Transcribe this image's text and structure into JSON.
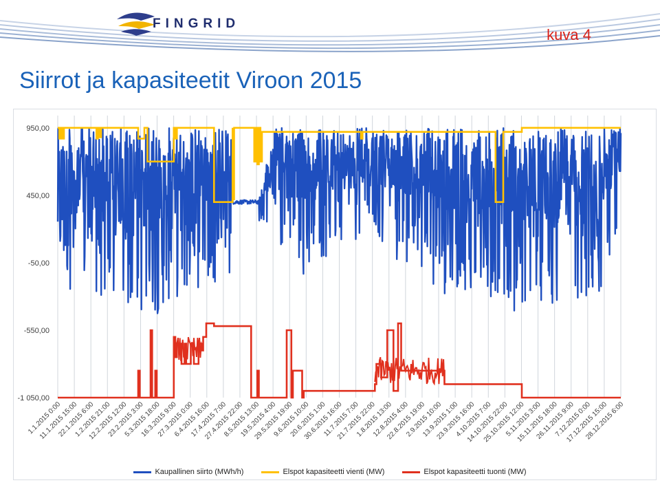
{
  "header": {
    "logo_text": "FINGRID",
    "slide_tag": "kuva 4",
    "title": "Siirrot ja kapasiteetit Viroon 2015"
  },
  "colors": {
    "transfer": "#1f4fbf",
    "export_capacity": "#ffc000",
    "import_capacity": "#e0301e",
    "grid": "#d0d5db",
    "axis_text": "#404040",
    "title": "#1a62b8",
    "tag": "#d8221a"
  },
  "chart_data": {
    "type": "line",
    "title": "",
    "xlabel": "",
    "ylabel": "",
    "ylim": [
      -1050,
      1000
    ],
    "yticks": [
      950,
      450,
      -50,
      -550,
      -1050
    ],
    "ytick_labels": [
      "950,00",
      "450,00",
      "-50,00",
      "-550,00",
      "-1 050,00"
    ],
    "x_range_hours": [
      0,
      8759
    ],
    "xtick_labels": [
      "1.1.2015 0:00",
      "11.1.2015 15:00",
      "22.1.2015 6:00",
      "1.2.2015 21:00",
      "12.2.2015 12:00",
      "23.2.2015 3:00",
      "5.3.2015 18:00",
      "16.3.2015 9:00",
      "27.3.2015 0:00",
      "6.4.2015 16:00",
      "17.4.2015 7:00",
      "27.4.2015 22:00",
      "8.5.2015 13:00",
      "19.5.2015 4:00",
      "29.5.2015 19:00",
      "9.6.2015 10:00",
      "20.6.2015 1:00",
      "30.6.2015 16:00",
      "11.7.2015 7:00",
      "21.7.2015 22:00",
      "1.8.2015 13:00",
      "12.8.2015 4:00",
      "22.8.2015 19:00",
      "2.9.2015 10:00",
      "13.9.2015 1:00",
      "23.9.2015 16:00",
      "4.10.2015 7:00",
      "14.10.2015 22:00",
      "25.10.2015 12:00",
      "5.11.2015 3:00",
      "15.11.2015 18:00",
      "26.11.2015 9:00",
      "7.12.2015 0:00",
      "17.12.2015 15:00",
      "28.12.2015 6:00"
    ],
    "grid": true,
    "legend_position": "bottom",
    "series": [
      {
        "name": "Kaupallinen siirto (MWh/h)",
        "color": "#1f4fbf",
        "note": "hourly series, summarized as daily [min, max] envelope",
        "x_days": [
          0,
          10,
          20,
          30,
          40,
          50,
          60,
          70,
          80,
          90,
          100,
          110,
          120,
          130,
          140,
          150,
          160,
          170,
          180,
          190,
          200,
          210,
          220,
          230,
          240,
          250,
          260,
          270,
          280,
          290,
          300,
          310,
          320,
          330,
          340,
          350,
          364
        ],
        "range_min": [
          -50,
          -300,
          -250,
          -350,
          -450,
          -400,
          -500,
          -350,
          -300,
          -250,
          -200,
          -150,
          -100,
          250,
          250,
          -200,
          -150,
          -50,
          50,
          50,
          100,
          0,
          -100,
          -50,
          -200,
          -300,
          -250,
          -250,
          -300,
          -400,
          -450,
          -300,
          -450,
          -350,
          -350,
          -300,
          300
        ],
        "range_max": [
          950,
          950,
          950,
          950,
          950,
          950,
          950,
          950,
          950,
          950,
          950,
          950,
          950,
          420,
          950,
          950,
          950,
          950,
          950,
          950,
          950,
          950,
          950,
          950,
          950,
          950,
          950,
          950,
          950,
          950,
          950,
          950,
          950,
          950,
          950,
          950,
          950
        ]
      },
      {
        "name": "Elspot kapasiteetti vienti (MW)",
        "color": "#ffc000",
        "x_days": [
          0,
          1,
          1,
          2,
          2,
          3,
          3,
          4,
          4,
          25,
          25,
          26,
          26,
          27,
          27,
          28,
          28,
          52,
          52,
          56,
          56,
          58,
          58,
          75,
          75,
          76,
          76,
          77,
          77,
          101,
          101,
          113,
          113,
          113,
          113,
          114,
          114,
          127,
          127,
          128,
          128,
          129,
          129,
          130,
          130,
          131,
          131,
          132,
          132,
          177,
          177,
          196,
          196,
          197,
          197,
          247,
          247,
          248,
          248,
          283,
          283,
          288,
          288,
          290,
          290,
          300,
          300,
          364
        ],
        "y": [
          950,
          950,
          870,
          870,
          950,
          950,
          870,
          870,
          950,
          950,
          870,
          870,
          950,
          950,
          880,
          880,
          950,
          950,
          870,
          870,
          950,
          950,
          700,
          700,
          950,
          950,
          870,
          870,
          950,
          950,
          400,
          400,
          950,
          950,
          420,
          420,
          950,
          950,
          700,
          700,
          950,
          950,
          680,
          680,
          950,
          950,
          700,
          700,
          920,
          920,
          920,
          920,
          870,
          870,
          920,
          920,
          920,
          920,
          920,
          920,
          400,
          400,
          920,
          920,
          920,
          920,
          950,
          950
        ]
      },
      {
        "name": "Elspot kapasiteetti tuonti (MW)",
        "color": "#e0301e",
        "x_days": [
          0,
          52,
          52,
          53,
          53,
          60,
          60,
          61,
          61,
          63,
          63,
          64,
          64,
          75,
          75,
          76,
          76,
          77,
          77,
          80,
          80,
          82,
          82,
          83,
          83,
          86,
          86,
          88,
          88,
          91,
          91,
          93,
          93,
          94,
          94,
          96,
          96,
          101,
          101,
          113,
          113,
          125,
          125,
          129,
          129,
          130,
          130,
          148,
          148,
          151,
          151,
          152,
          152,
          158,
          158,
          159,
          159,
          165,
          165,
          170,
          170,
          205,
          205,
          206,
          206,
          209,
          209,
          213,
          213,
          217,
          217,
          220,
          220,
          222,
          222,
          250,
          250,
          300,
          300,
          364
        ],
        "y": [
          -1050,
          -1050,
          -850,
          -850,
          -1050,
          -1050,
          -550,
          -550,
          -1050,
          -1050,
          -850,
          -850,
          -1050,
          -1050,
          -600,
          -600,
          -750,
          -750,
          -650,
          -650,
          -800,
          -800,
          -650,
          -650,
          -800,
          -800,
          -650,
          -650,
          -800,
          -800,
          -650,
          -650,
          -700,
          -700,
          -600,
          -600,
          -500,
          -500,
          -520,
          -520,
          -520,
          -520,
          -1050,
          -1050,
          -850,
          -850,
          -1050,
          -1050,
          -550,
          -550,
          -1050,
          -1050,
          -850,
          -850,
          -1050,
          -1050,
          -1000,
          -1000,
          -1000,
          -1000,
          -1000,
          -1000,
          -950,
          -950,
          -800,
          -800,
          -900,
          -900,
          -550,
          -550,
          -1000,
          -1000,
          -500,
          -500,
          -850,
          -850,
          -950,
          -950,
          -1050,
          -1050
        ]
      }
    ]
  },
  "legend": {
    "items": [
      {
        "label": "Kaupallinen siirto (MWh/h)",
        "color": "#1f4fbf"
      },
      {
        "label": "Elspot kapasiteetti vienti (MW)",
        "color": "#ffc000"
      },
      {
        "label": "Elspot kapasiteetti tuonti (MW)",
        "color": "#e0301e"
      }
    ]
  }
}
